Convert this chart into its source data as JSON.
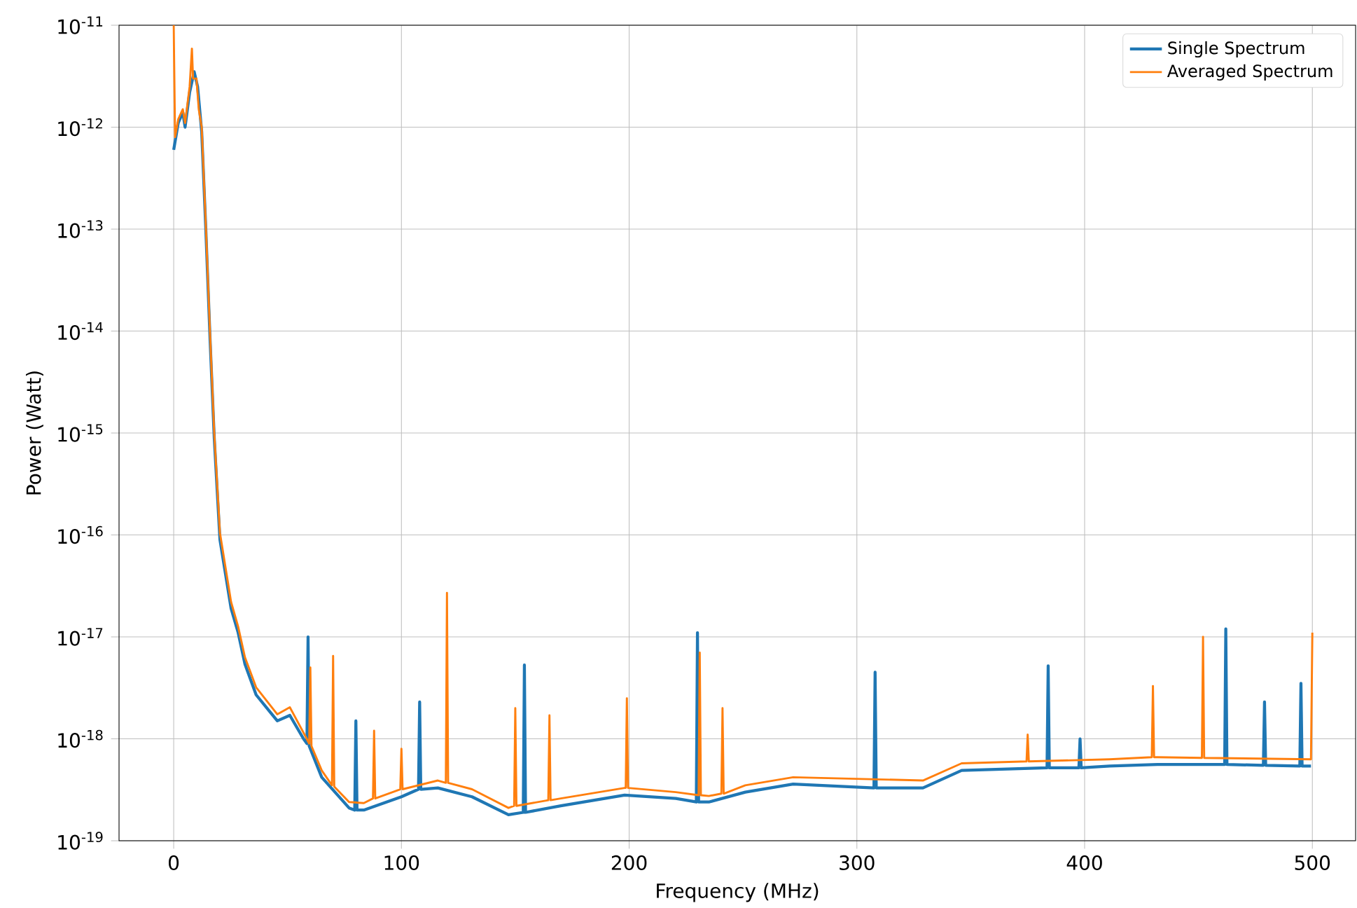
{
  "chart_data": {
    "type": "line",
    "xlabel": "Frequency (MHz)",
    "ylabel": "Power (Watt)",
    "log": "y",
    "grid": true,
    "legend": "top right",
    "xlim": [
      -24,
      519
    ],
    "ylim": [
      1e-19,
      1e-11
    ],
    "xticks": [
      0,
      100,
      200,
      300,
      400,
      500
    ],
    "yticks": [
      {
        "value": 1e-19,
        "label": "10$^{-19}$"
      },
      {
        "value": 1e-18,
        "label": "10$^{-18}$"
      },
      {
        "value": 1e-17,
        "label": "10$^{-17}$"
      },
      {
        "value": 1e-16,
        "label": "10$^{-16}$"
      },
      {
        "value": 1e-15,
        "label": "10$^{-15}$"
      },
      {
        "value": 1e-14,
        "label": "10$^{-14}$"
      },
      {
        "value": 1e-13,
        "label": "10$^{-13}$"
      },
      {
        "value": 1e-12,
        "label": "10$^{-12}$"
      },
      {
        "value": 1e-11,
        "label": "10$^{-11}$"
      }
    ],
    "series": [
      {
        "name": "Single Spectrum",
        "color": "#1f77b4",
        "x": [
          0,
          2,
          4,
          5,
          7,
          9,
          10.5,
          12.3,
          14.1,
          16,
          17.8,
          20.3,
          25.2,
          28.3,
          31.3,
          36.2,
          45.5,
          51,
          57,
          58.5,
          59,
          59.5,
          65,
          77,
          79.5,
          80,
          80.5,
          83.5,
          100,
          107.5,
          108,
          108.5,
          116,
          131,
          147,
          153.5,
          154,
          154.5,
          170,
          198,
          220.5,
          229.5,
          230,
          230.5,
          235,
          251,
          272,
          307.5,
          308,
          308.5,
          329,
          346,
          383.5,
          384,
          384.5,
          397.5,
          398,
          398.5,
          411,
          432,
          461.5,
          462,
          462.5,
          478.5,
          479,
          479.5,
          494.5,
          495,
          495.5,
          499.4
        ],
        "values": [
          6e-13,
          1.1e-12,
          1.4e-12,
          1e-12,
          2.2e-12,
          3.5e-12,
          2.5e-12,
          9e-13,
          1e-13,
          8e-15,
          9e-16,
          9e-17,
          1.9e-17,
          1.1e-17,
          5.4e-18,
          2.7e-18,
          1.5e-18,
          1.7e-18,
          1e-18,
          9e-19,
          1e-17,
          8.5e-19,
          4.2e-19,
          2.1e-19,
          2e-19,
          1.5e-18,
          2e-19,
          2e-19,
          2.7e-19,
          3.2e-19,
          2.3e-18,
          3.2e-19,
          3.3e-19,
          2.7e-19,
          1.8e-19,
          1.9e-19,
          5.3e-18,
          1.9e-19,
          2.2e-19,
          2.8e-19,
          2.6e-19,
          2.4e-19,
          1.1e-17,
          2.4e-19,
          2.4e-19,
          3e-19,
          3.6e-19,
          3.3e-19,
          4.5e-18,
          3.3e-19,
          3.3e-19,
          4.9e-19,
          5.2e-19,
          5.2e-18,
          5.2e-19,
          5.2e-19,
          1e-18,
          5.2e-19,
          5.4e-19,
          5.6e-19,
          5.6e-19,
          1.2e-17,
          5.6e-19,
          5.5e-19,
          2.3e-18,
          5.5e-19,
          5.4e-19,
          3.5e-18,
          5.4e-19,
          5.4e-19
        ]
      },
      {
        "name": "Averaged Spectrum",
        "color": "#ff7f0e",
        "x": [
          0,
          0.6,
          2,
          4,
          5,
          7,
          8,
          8.5,
          10,
          11,
          12.3,
          14.1,
          16,
          17.8,
          20.3,
          25.2,
          28.3,
          31.3,
          36.2,
          45.5,
          51,
          57,
          59.5,
          60,
          60.5,
          65,
          69.5,
          70,
          70.5,
          77,
          83.5,
          87.5,
          88,
          88.5,
          99.5,
          100,
          100.5,
          116,
          119.5,
          120,
          120.5,
          131,
          147,
          149.5,
          150,
          150.5,
          164.5,
          165,
          165.5,
          170,
          198,
          198.5,
          199,
          199.5,
          220.5,
          230.5,
          231,
          231.5,
          235,
          240.5,
          241,
          241.5,
          251,
          272,
          329,
          346,
          374.5,
          375,
          375.5,
          411,
          429.5,
          430,
          430.5,
          432,
          451.5,
          452,
          452.5,
          499.4,
          500
        ],
        "values": [
          1e-11,
          8e-13,
          1.2e-12,
          1.5e-12,
          1.1e-12,
          2.5e-12,
          5.9e-12,
          3e-12,
          3e-12,
          1.5e-12,
          1e-12,
          1.1e-13,
          9e-15,
          1e-15,
          1.05e-16,
          2.2e-17,
          1.26e-17,
          6.3e-18,
          3.2e-18,
          1.74e-18,
          2.04e-18,
          1.15e-18,
          9e-19,
          5e-18,
          8.5e-19,
          4.9e-19,
          3.5e-19,
          6.5e-18,
          3.4e-19,
          2.4e-19,
          2.34e-19,
          2.6e-19,
          1.2e-18,
          2.6e-19,
          3.2e-19,
          8e-19,
          3.2e-19,
          3.9e-19,
          3.7e-19,
          2.7e-17,
          3.7e-19,
          3.2e-19,
          2.1e-19,
          2.2e-19,
          2e-18,
          2.2e-19,
          2.5e-19,
          1.7e-18,
          2.5e-19,
          2.6e-19,
          3.3e-19,
          3.3e-19,
          2.5e-18,
          3.3e-19,
          3e-19,
          2.8e-19,
          7e-18,
          2.8e-19,
          2.75e-19,
          2.9e-19,
          2e-18,
          2.9e-19,
          3.5e-19,
          4.2e-19,
          3.9e-19,
          5.75e-19,
          6e-19,
          1.1e-18,
          6e-19,
          6.3e-19,
          6.6e-19,
          3.3e-18,
          6.6e-19,
          6.6e-19,
          6.5e-19,
          1e-17,
          6.5e-19,
          6.3e-19,
          1.1e-17
        ]
      }
    ]
  }
}
